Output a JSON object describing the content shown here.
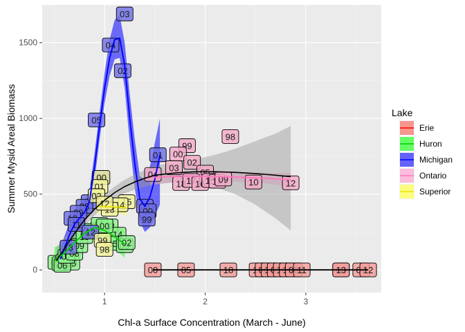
{
  "chart_data": {
    "type": "scatter",
    "title": "",
    "xlabel": "Chl-a Surface Concentration (March - June)",
    "ylabel": "Summer Mysid Areal Biomass",
    "xlim": [
      0.38,
      3.75
    ],
    "ylim": [
      -150,
      1750
    ],
    "x_ticks": [
      1,
      2,
      3
    ],
    "y_ticks": [
      0,
      500,
      1000,
      1500
    ],
    "grid": true,
    "legend": {
      "title": "Lake",
      "placement": "right",
      "entries": [
        {
          "name": "Erie",
          "color": "#F8766D",
          "line": "#ff0000"
        },
        {
          "name": "Huron",
          "color": "#33ff33",
          "line": "#00cc00"
        },
        {
          "name": "Michigan",
          "color": "#3333ff",
          "line": "#0000ff"
        },
        {
          "name": "Ontario",
          "color": "#ffaad4",
          "line": "#ff77bb"
        },
        {
          "name": "Superior",
          "color": "#ffff55",
          "line": "#e6e600"
        }
      ]
    },
    "series": [
      {
        "name": "Erie",
        "fill": "#F39C9A",
        "points": [
          {
            "x": 1.48,
            "y": 0,
            "label": "00"
          },
          {
            "x": 1.81,
            "y": 0,
            "label": "05"
          },
          {
            "x": 2.23,
            "y": 0,
            "label": "18"
          },
          {
            "x": 2.52,
            "y": 0,
            "label": "17"
          },
          {
            "x": 2.58,
            "y": 0,
            "label": "06"
          },
          {
            "x": 2.64,
            "y": 0,
            "label": "14"
          },
          {
            "x": 2.7,
            "y": 0,
            "label": "03"
          },
          {
            "x": 2.76,
            "y": 0,
            "label": "16"
          },
          {
            "x": 2.82,
            "y": 0,
            "label": "15"
          },
          {
            "x": 2.88,
            "y": 0,
            "label": "08"
          },
          {
            "x": 2.96,
            "y": 0,
            "label": "11"
          },
          {
            "x": 3.35,
            "y": 0,
            "label": "09"
          },
          {
            "x": 3.35,
            "y": 0,
            "label": "13"
          },
          {
            "x": 3.55,
            "y": 0,
            "label": "07"
          },
          {
            "x": 3.62,
            "y": 0,
            "label": "12"
          }
        ]
      },
      {
        "name": "Huron",
        "fill": "#8CF08C",
        "points": [
          {
            "x": 0.52,
            "y": 50,
            "label": "01"
          },
          {
            "x": 0.56,
            "y": 40,
            "label": "02"
          },
          {
            "x": 0.6,
            "y": 60,
            "label": "03"
          },
          {
            "x": 0.64,
            "y": 80,
            "label": "04"
          },
          {
            "x": 0.67,
            "y": 45,
            "label": "05"
          },
          {
            "x": 0.58,
            "y": 30,
            "label": "06"
          },
          {
            "x": 0.62,
            "y": 90,
            "label": "07"
          },
          {
            "x": 0.7,
            "y": 110,
            "label": "08"
          },
          {
            "x": 0.75,
            "y": 160,
            "label": "09"
          },
          {
            "x": 0.8,
            "y": 220,
            "label": "10"
          },
          {
            "x": 0.85,
            "y": 260,
            "label": "11"
          },
          {
            "x": 0.95,
            "y": 300,
            "label": "12"
          },
          {
            "x": 1.05,
            "y": 290,
            "label": "13"
          },
          {
            "x": 1.13,
            "y": 235,
            "label": "14"
          },
          {
            "x": 1.08,
            "y": 175,
            "label": "15"
          },
          {
            "x": 1.0,
            "y": 290,
            "label": "00"
          },
          {
            "x": 1.2,
            "y": 160,
            "label": "09"
          },
          {
            "x": 1.22,
            "y": 180,
            "label": "02"
          }
        ]
      },
      {
        "name": "Michigan",
        "fill": "#6F6FE6",
        "points": [
          {
            "x": 1.2,
            "y": 1690,
            "label": "03"
          },
          {
            "x": 1.06,
            "y": 1485,
            "label": "04"
          },
          {
            "x": 1.18,
            "y": 1315,
            "label": "02"
          },
          {
            "x": 0.92,
            "y": 990,
            "label": "05"
          },
          {
            "x": 1.53,
            "y": 760,
            "label": "01"
          },
          {
            "x": 0.96,
            "y": 610,
            "label": "06"
          },
          {
            "x": 0.85,
            "y": 450,
            "label": "07"
          },
          {
            "x": 0.8,
            "y": 420,
            "label": "08"
          },
          {
            "x": 0.74,
            "y": 380,
            "label": "09"
          },
          {
            "x": 0.68,
            "y": 340,
            "label": "10"
          },
          {
            "x": 0.72,
            "y": 300,
            "label": "11"
          },
          {
            "x": 0.86,
            "y": 250,
            "label": "12"
          },
          {
            "x": 0.64,
            "y": 150,
            "label": "13"
          },
          {
            "x": 1.4,
            "y": 420,
            "label": "16"
          },
          {
            "x": 1.43,
            "y": 390,
            "label": "00"
          },
          {
            "x": 1.42,
            "y": 335,
            "label": "99"
          }
        ]
      },
      {
        "name": "Ontario",
        "fill": "#F3A9C8",
        "points": [
          {
            "x": 2.25,
            "y": 880,
            "label": "98"
          },
          {
            "x": 1.82,
            "y": 820,
            "label": "99"
          },
          {
            "x": 1.73,
            "y": 765,
            "label": "00"
          },
          {
            "x": 1.87,
            "y": 710,
            "label": "02"
          },
          {
            "x": 1.69,
            "y": 675,
            "label": "03"
          },
          {
            "x": 1.48,
            "y": 630,
            "label": "04"
          },
          {
            "x": 2.0,
            "y": 645,
            "label": "05"
          },
          {
            "x": 1.76,
            "y": 570,
            "label": "18"
          },
          {
            "x": 1.86,
            "y": 590,
            "label": "17"
          },
          {
            "x": 1.95,
            "y": 570,
            "label": "16"
          },
          {
            "x": 2.05,
            "y": 590,
            "label": "15"
          },
          {
            "x": 2.12,
            "y": 585,
            "label": "14"
          },
          {
            "x": 2.18,
            "y": 600,
            "label": "09"
          },
          {
            "x": 2.48,
            "y": 580,
            "label": "10"
          },
          {
            "x": 2.85,
            "y": 575,
            "label": "12"
          }
        ]
      },
      {
        "name": "Superior",
        "fill": "#F2F29A",
        "points": [
          {
            "x": 0.97,
            "y": 610,
            "label": "00"
          },
          {
            "x": 0.95,
            "y": 550,
            "label": "01"
          },
          {
            "x": 0.92,
            "y": 490,
            "label": "02"
          },
          {
            "x": 1.22,
            "y": 450,
            "label": "15"
          },
          {
            "x": 1.15,
            "y": 430,
            "label": "14"
          },
          {
            "x": 1.05,
            "y": 400,
            "label": "13"
          },
          {
            "x": 1.0,
            "y": 440,
            "label": "12"
          },
          {
            "x": 0.98,
            "y": 195,
            "label": "99"
          },
          {
            "x": 1.0,
            "y": 135,
            "label": "98"
          }
        ]
      }
    ],
    "fits": [
      {
        "name": "Michigan",
        "color": "#0000ff",
        "ribbon": "#0000ff",
        "points": [
          [
            0.56,
            70
          ],
          [
            0.6,
            140
          ],
          [
            0.65,
            230
          ],
          [
            0.7,
            300
          ],
          [
            0.75,
            340
          ],
          [
            0.8,
            380
          ],
          [
            0.85,
            450
          ],
          [
            0.9,
            680
          ],
          [
            0.95,
            950
          ],
          [
            1.0,
            1200
          ],
          [
            1.05,
            1400
          ],
          [
            1.1,
            1520
          ],
          [
            1.15,
            1530
          ],
          [
            1.2,
            1350
          ],
          [
            1.25,
            1000
          ],
          [
            1.3,
            700
          ],
          [
            1.35,
            470
          ],
          [
            1.4,
            420
          ],
          [
            1.45,
            480
          ],
          [
            1.5,
            600
          ],
          [
            1.55,
            760
          ]
        ],
        "band": [
          [
            0.56,
            0,
            140
          ],
          [
            0.6,
            60,
            220
          ],
          [
            0.65,
            150,
            310
          ],
          [
            0.7,
            220,
            380
          ],
          [
            0.75,
            270,
            410
          ],
          [
            0.8,
            310,
            450
          ],
          [
            0.85,
            380,
            520
          ],
          [
            0.9,
            590,
            770
          ],
          [
            0.95,
            860,
            1040
          ],
          [
            1.0,
            1100,
            1300
          ],
          [
            1.05,
            1280,
            1520
          ],
          [
            1.1,
            1390,
            1650
          ],
          [
            1.15,
            1400,
            1680
          ],
          [
            1.2,
            1200,
            1500
          ],
          [
            1.25,
            840,
            1160
          ],
          [
            1.3,
            540,
            860
          ],
          [
            1.35,
            320,
            620
          ],
          [
            1.4,
            250,
            590
          ],
          [
            1.45,
            280,
            680
          ],
          [
            1.5,
            360,
            840
          ],
          [
            1.55,
            430,
            1000
          ]
        ]
      },
      {
        "name": "Huron",
        "color": "#00cc00",
        "ribbon": "#33ff33",
        "points": [
          [
            0.5,
            60
          ],
          [
            0.6,
            110
          ],
          [
            0.7,
            180
          ],
          [
            0.8,
            240
          ],
          [
            0.9,
            280
          ],
          [
            1.0,
            260
          ],
          [
            1.1,
            220
          ],
          [
            1.2,
            170
          ]
        ],
        "band": [
          [
            0.5,
            0,
            150
          ],
          [
            0.6,
            50,
            170
          ],
          [
            0.7,
            130,
            230
          ],
          [
            0.8,
            190,
            290
          ],
          [
            0.9,
            230,
            330
          ],
          [
            1.0,
            200,
            320
          ],
          [
            1.1,
            140,
            300
          ],
          [
            1.2,
            80,
            260
          ]
        ]
      },
      {
        "name": "Ontario",
        "color": "#ff77bb",
        "ribbon": "#ffaad4",
        "points": [
          [
            1.45,
            610
          ],
          [
            1.8,
            620
          ],
          [
            2.2,
            615
          ],
          [
            2.6,
            605
          ],
          [
            2.85,
            595
          ]
        ],
        "band": [
          [
            1.45,
            560,
            660
          ],
          [
            1.8,
            585,
            655
          ],
          [
            2.2,
            585,
            645
          ],
          [
            2.6,
            570,
            640
          ],
          [
            2.85,
            550,
            640
          ]
        ]
      },
      {
        "name": "Superior",
        "color": "#e6e600",
        "ribbon": "#ffff55",
        "points": [
          [
            0.92,
            420
          ],
          [
            1.0,
            418
          ],
          [
            1.1,
            415
          ],
          [
            1.22,
            412
          ]
        ],
        "band": [
          [
            0.92,
            370,
            470
          ],
          [
            1.0,
            385,
            450
          ],
          [
            1.1,
            380,
            450
          ],
          [
            1.22,
            360,
            465
          ]
        ]
      },
      {
        "name": "Erie",
        "color": "#000000",
        "ribbon": null,
        "points": [
          [
            1.48,
            0
          ],
          [
            2.0,
            0
          ],
          [
            2.5,
            0
          ],
          [
            3.0,
            0
          ],
          [
            3.62,
            0
          ]
        ],
        "band": null
      },
      {
        "name": "Overall",
        "color": "#000000",
        "ribbon": "#999999",
        "points": [
          [
            0.52,
            60
          ],
          [
            0.6,
            140
          ],
          [
            0.7,
            240
          ],
          [
            0.8,
            330
          ],
          [
            0.9,
            400
          ],
          [
            1.0,
            460
          ],
          [
            1.1,
            510
          ],
          [
            1.2,
            550
          ],
          [
            1.3,
            580
          ],
          [
            1.4,
            605
          ],
          [
            1.5,
            625
          ],
          [
            1.7,
            640
          ],
          [
            1.9,
            648
          ],
          [
            2.1,
            648
          ],
          [
            2.3,
            644
          ],
          [
            2.5,
            636
          ],
          [
            2.7,
            625
          ],
          [
            2.85,
            615
          ]
        ],
        "band": [
          [
            0.52,
            -20,
            150
          ],
          [
            0.6,
            80,
            210
          ],
          [
            0.7,
            190,
            290
          ],
          [
            0.8,
            290,
            370
          ],
          [
            0.9,
            360,
            440
          ],
          [
            1.0,
            420,
            500
          ],
          [
            1.1,
            470,
            550
          ],
          [
            1.2,
            505,
            595
          ],
          [
            1.3,
            530,
            630
          ],
          [
            1.4,
            550,
            660
          ],
          [
            1.5,
            565,
            690
          ],
          [
            1.7,
            580,
            705
          ],
          [
            1.9,
            570,
            730
          ],
          [
            2.1,
            545,
            760
          ],
          [
            2.3,
            500,
            800
          ],
          [
            2.5,
            430,
            850
          ],
          [
            2.7,
            340,
            900
          ],
          [
            2.85,
            260,
            950
          ]
        ]
      }
    ]
  }
}
